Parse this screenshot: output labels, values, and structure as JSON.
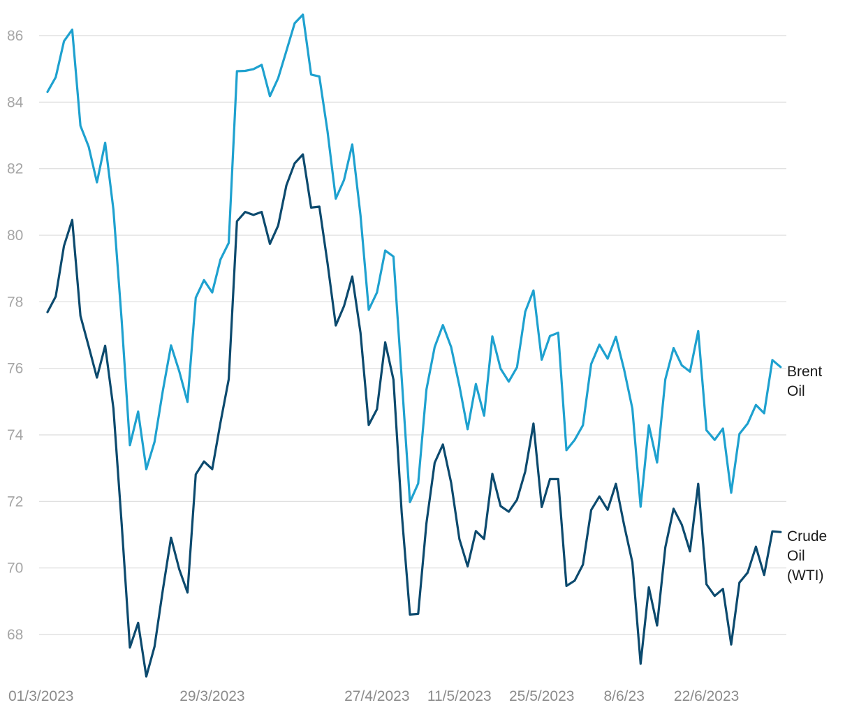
{
  "chart_data": {
    "type": "line",
    "x_unit": "trading day",
    "x_ticks": [
      {
        "x": 0,
        "label": "01/3/2023"
      },
      {
        "x": 20,
        "label": "29/3/2023"
      },
      {
        "x": 40,
        "label": "27/4/2023"
      },
      {
        "x": 50,
        "label": "11/5/2023"
      },
      {
        "x": 60,
        "label": "25/5/2023"
      },
      {
        "x": 70,
        "label": "8/6/23"
      },
      {
        "x": 80,
        "label": "22/6/2023"
      }
    ],
    "xlim": [
      0,
      88
    ],
    "ylim": [
      66.7,
      86.8
    ],
    "y_ticks": [
      68,
      70,
      72,
      74,
      76,
      78,
      80,
      82,
      84,
      86
    ],
    "grid": true,
    "series": [
      {
        "name": "Brent Oil",
        "color": "#1ea1cf",
        "values": [
          84.31,
          84.75,
          85.83,
          86.18,
          83.29,
          82.66,
          81.59,
          82.78,
          80.77,
          77.45,
          73.69,
          74.7,
          72.97,
          73.79,
          75.32,
          76.69,
          75.91,
          74.99,
          78.12,
          78.65,
          78.28,
          79.27,
          79.77,
          84.93,
          84.94,
          84.99,
          85.12,
          84.18,
          84.72,
          85.54,
          86.37,
          86.63,
          84.83,
          84.77,
          83.12,
          81.1,
          81.66,
          82.73,
          80.6,
          77.76,
          78.28,
          79.54,
          79.36,
          75.71,
          71.98,
          72.54,
          75.36,
          76.64,
          77.3,
          76.64,
          75.48,
          74.17,
          75.53,
          74.58,
          76.96,
          75.99,
          75.6,
          76.03,
          77.7,
          78.34,
          76.26,
          76.97,
          77.07,
          73.54,
          73.85,
          74.29,
          76.13,
          76.71,
          76.29,
          76.95,
          75.96,
          74.79,
          71.84,
          74.29,
          73.17,
          75.67,
          76.61,
          76.09,
          75.9,
          77.12,
          74.14,
          73.85,
          74.19,
          72.26,
          74.03,
          74.34,
          74.9,
          74.65,
          76.25,
          76.04
        ]
      },
      {
        "name": "Crude Oil (WTI)",
        "color": "#0c4a6e",
        "values": [
          77.69,
          78.16,
          79.68,
          80.46,
          77.58,
          76.66,
          75.72,
          76.68,
          74.8,
          71.33,
          67.61,
          68.35,
          66.74,
          67.64,
          69.33,
          70.91,
          69.96,
          69.26,
          72.81,
          73.2,
          72.97,
          74.37,
          75.67,
          80.42,
          80.7,
          80.61,
          80.7,
          79.74,
          80.29,
          81.5,
          82.16,
          82.43,
          80.83,
          80.86,
          79.16,
          77.29,
          77.87,
          78.76,
          77.07,
          74.3,
          74.77,
          76.78,
          75.66,
          71.66,
          68.6,
          68.62,
          71.34,
          73.16,
          73.71,
          72.56,
          70.87,
          70.05,
          71.11,
          70.87,
          72.83,
          71.86,
          71.69,
          72.05,
          72.9,
          74.34,
          71.83,
          72.67,
          72.67,
          69.46,
          69.62,
          70.1,
          71.74,
          72.15,
          71.75,
          72.53,
          71.29,
          70.17,
          67.12,
          69.42,
          68.27,
          70.62,
          71.78,
          71.3,
          70.5,
          72.53,
          69.51,
          69.16,
          69.37,
          67.7,
          69.56,
          69.86,
          70.64,
          69.79,
          71.1,
          71.08
        ]
      }
    ]
  },
  "legend": {
    "brent": [
      "Brent",
      "Oil"
    ],
    "wti": [
      "Crude",
      "Oil",
      "(WTI)"
    ]
  }
}
